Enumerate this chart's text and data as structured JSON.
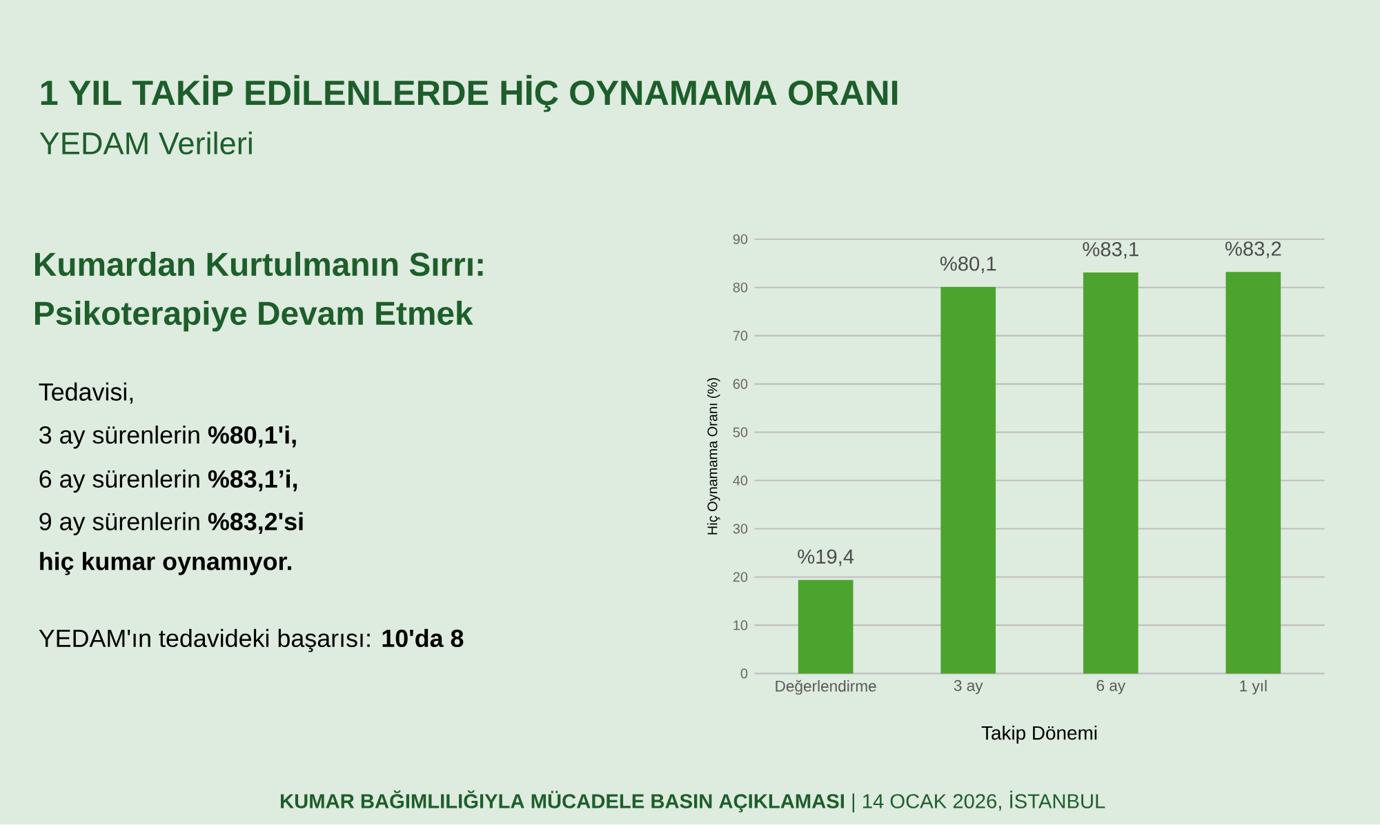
{
  "chart_data": {
    "type": "bar",
    "title": "1 YIL TAKİP EDİLENLERDE HİÇ OYNAMAMA ORANI",
    "subtitle": "YEDAM Verileri",
    "xlabel": "Takip Dönemi",
    "ylabel": "Hiç Oynamama Oranı (%)",
    "categories": [
      "Değerlendirme",
      "3 ay",
      "6 ay",
      "1 yıl"
    ],
    "values": [
      19.4,
      80.1,
      83.1,
      83.2
    ],
    "value_labels": [
      "%19,4",
      "%80,1",
      "%83,1",
      "%83,2"
    ],
    "color": "#4ca42e",
    "ylim": [
      0,
      90
    ],
    "yticks": [
      0,
      10,
      20,
      30,
      40,
      50,
      60,
      70,
      80,
      90
    ],
    "grid": "y",
    "annotations": [
      "Kumardan Kurtulmanın Sırrı:",
      "Psikoterapiye Devam Etmek",
      "Tedavisi,",
      "3 ay sürenlerin **%80,1'i,**",
      "6 ay sürenlerin **%83,1’i,**",
      "9 ay sürenlerin **%83,2'si**",
      "**hiç kumar oynamıyor.**",
      "YEDAM'ın tedavideki başarısı: **10'da 8**",
      "**KUMAR BAĞIMLILIĞIYLA MÜCADELE BASIN AÇIKLAMASI** | 14 OCAK 2026, İSTANBUL"
    ]
  }
}
